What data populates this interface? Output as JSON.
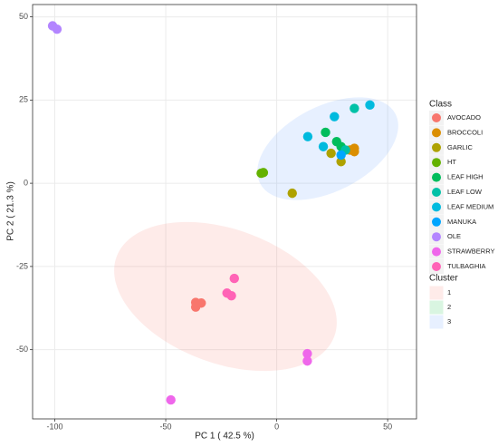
{
  "chart_data": {
    "type": "scatter",
    "x_label": "PC 1 ( 42.5 %)",
    "y_label": "PC 2 ( 21.3 %)",
    "xlim": [
      -110,
      63
    ],
    "ylim": [
      -70.8,
      53.7
    ],
    "xticks": [
      -100,
      -50,
      0,
      50
    ],
    "yticks": [
      -50,
      -25,
      0,
      25,
      50
    ],
    "grid": true,
    "legend_title": "Class",
    "series": [
      {
        "name": "AVOCADO",
        "color": "#F8766D",
        "x": [
          -36.5,
          -36.5,
          -34
        ],
        "values": [
          -35.8,
          -37.2,
          -36
        ]
      },
      {
        "name": "BROCCOLI",
        "color": "#DB8E00",
        "x": [
          35,
          35,
          33
        ],
        "values": [
          10.5,
          9.5,
          10
        ]
      },
      {
        "name": "GARLIC",
        "color": "#AEA200",
        "x": [
          24.5,
          29,
          7
        ],
        "values": [
          9,
          6.5,
          -3
        ]
      },
      {
        "name": "HT",
        "color": "#64B200",
        "x": [
          -7,
          -6
        ],
        "values": [
          3,
          3.2
        ]
      },
      {
        "name": "LEAF HIGH",
        "color": "#00BD5C",
        "x": [
          22,
          27,
          29
        ],
        "values": [
          15.3,
          12.5,
          11
        ]
      },
      {
        "name": "LEAF LOW",
        "color": "#00C1A7",
        "x": [
          31,
          35
        ],
        "values": [
          10,
          22.5
        ]
      },
      {
        "name": "LEAF MEDIUM",
        "color": "#00BADE",
        "x": [
          42,
          26,
          14,
          21
        ],
        "values": [
          23.5,
          20,
          14,
          11
        ]
      },
      {
        "name": "MANUKA",
        "color": "#00A6FF",
        "x": [
          29
        ],
        "values": [
          8.5
        ]
      },
      {
        "name": "OLE",
        "color": "#B385FF",
        "x": [
          -101,
          -99
        ],
        "values": [
          47.3,
          46.3
        ]
      },
      {
        "name": "STRAWBERRY",
        "color": "#EF67EB",
        "x": [
          -47.7,
          13.8,
          13.8
        ],
        "values": [
          -65.1,
          -51.2,
          -53.4
        ]
      },
      {
        "name": "TULBAGHIA",
        "color": "#FF63B6",
        "x": [
          -19.1,
          -22.4,
          -20.4
        ],
        "values": [
          -28.6,
          -33,
          -33.8
        ]
      }
    ],
    "cluster_title": "Cluster",
    "clusters": [
      {
        "name": "1",
        "color": "#F8766D"
      },
      {
        "name": "2",
        "color": "#00BA38"
      },
      {
        "name": "3",
        "color": "#619CFF"
      }
    ]
  }
}
